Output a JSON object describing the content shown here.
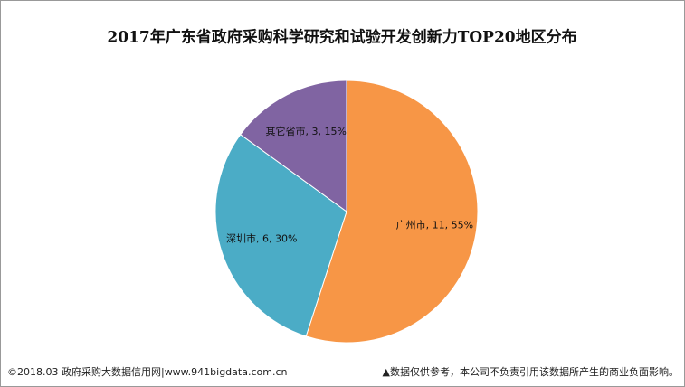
{
  "chart_data": {
    "type": "pie",
    "title": "2017年广东省政府采购科学研究和试验开发创新力TOP20地区分布",
    "categories": [
      "广州市",
      "深圳市",
      "其它省市"
    ],
    "values": [
      11,
      6,
      3
    ],
    "value_labels": [
      "广州市, 11, 55%",
      "深圳市, 6, 30%",
      "其它省市, 3, 15%"
    ],
    "colors": [
      "#f79646",
      "#4bacc6",
      "#8064a2"
    ]
  },
  "footer": {
    "left": "©2018.03 政府采购大数据信用网|www.941bigdata.com.cn",
    "right": "▲数据仅供参考，本公司不负责引用该数据所产生的商业负面影响。"
  }
}
